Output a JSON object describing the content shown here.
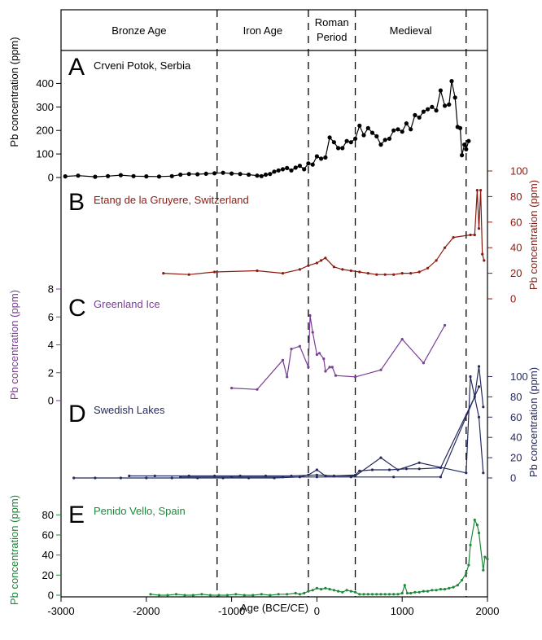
{
  "chart_data": {
    "type": "line",
    "xlabel": "Age (BCE/CE)",
    "xlim": [
      -3000,
      2000
    ],
    "x_ticks": [
      -3000,
      -2000,
      -1000,
      0,
      1000,
      2000
    ],
    "x_tick_labels": [
      "-3000",
      "-2000",
      "-1000",
      "0",
      "1000",
      "2000"
    ],
    "dashed_boundaries": [
      -1170,
      -100,
      450,
      1750
    ],
    "periods": [
      {
        "label_lines": [
          "Bronze Age"
        ],
        "center": -2085
      },
      {
        "label_lines": [
          "Iron Age"
        ],
        "center": -635
      },
      {
        "label_lines": [
          "Roman",
          "Period"
        ],
        "center": 175
      },
      {
        "label_lines": [
          "Medieval"
        ],
        "center": 1100
      }
    ],
    "panels": [
      {
        "letter": "A",
        "title": "Crveni Potok, Serbia",
        "color": "#000000",
        "ylabel": "Pb concentration (ppm)",
        "axis_side": "left",
        "ylim": [
          0,
          450
        ],
        "y_ticks": [
          0,
          100,
          200,
          300,
          400
        ],
        "series": [
          {
            "x": [
              -2950,
              -2800,
              -2600,
              -2450,
              -2300,
              -2150,
              -2000,
              -1850,
              -1700,
              -1600,
              -1500,
              -1400,
              -1300,
              -1200,
              -1100,
              -1000,
              -900,
              -800,
              -700,
              -650,
              -600,
              -550,
              -500,
              -450,
              -400,
              -350,
              -300,
              -250,
              -200,
              -150,
              -100,
              -50,
              0,
              50,
              100,
              150,
              200,
              250,
              300,
              350,
              400,
              450,
              500,
              550,
              600,
              650,
              700,
              750,
              800,
              850,
              900,
              950,
              1000,
              1050,
              1100,
              1150,
              1200,
              1250,
              1300,
              1350,
              1400,
              1450,
              1500,
              1550,
              1580,
              1620,
              1650,
              1680,
              1700,
              1730,
              1750,
              1780
            ],
            "y": [
              5,
              8,
              3,
              6,
              10,
              6,
              5,
              4,
              6,
              12,
              15,
              14,
              16,
              18,
              20,
              17,
              15,
              12,
              8,
              6,
              12,
              15,
              25,
              30,
              35,
              40,
              30,
              42,
              50,
              35,
              60,
              55,
              90,
              80,
              85,
              170,
              150,
              125,
              125,
              155,
              150,
              165,
              220,
              180,
              210,
              190,
              175,
              140,
              160,
              165,
              200,
              205,
              195,
              230,
              205,
              265,
              255,
              280,
              290,
              300,
              285,
              370,
              305,
              310,
              410,
              340,
              215,
              210,
              95,
              140,
              120,
              155
            ]
          }
        ]
      },
      {
        "letter": "B",
        "title": "Etang de la Gruyere, Switzerland",
        "color": "#8b1a10",
        "ylabel": "Pb concentration (ppm)",
        "axis_side": "right",
        "ylim": [
          0,
          100
        ],
        "y_ticks": [
          0,
          20,
          40,
          60,
          80,
          100
        ],
        "series": [
          {
            "x": [
              -1800,
              -1500,
              -1200,
              -700,
              -400,
              -200,
              -100,
              0,
              50,
              100,
              200,
              300,
              400,
              500,
              600,
              700,
              800,
              900,
              1000,
              1100,
              1200,
              1300,
              1400,
              1500,
              1600,
              1800,
              1850,
              1880,
              1900,
              1920,
              1940,
              1960
            ],
            "y": [
              20,
              19,
              21,
              22,
              20,
              23,
              26,
              28,
              30,
              32,
              25,
              23,
              22,
              21,
              20,
              19,
              19,
              19,
              20,
              20,
              21,
              24,
              30,
              40,
              48,
              50,
              50,
              85,
              55,
              85,
              35,
              30
            ]
          }
        ]
      },
      {
        "letter": "C",
        "title": "Greenland Ice",
        "color": "#7a3f96",
        "ylabel": "Pb concentration (ppm)",
        "axis_side": "left",
        "ylim": [
          0,
          8
        ],
        "y_ticks": [
          0,
          2,
          4,
          6,
          8
        ],
        "series": [
          {
            "x": [
              -1000,
              -700,
              -400,
              -350,
              -300,
              -200,
              -100,
              -80,
              -50,
              0,
              30,
              80,
              100,
              150,
              180,
              220,
              450,
              750,
              1000,
              1250,
              1500
            ],
            "y": [
              0.9,
              0.8,
              2.9,
              1.7,
              3.7,
              3.9,
              2.4,
              6.1,
              4.9,
              3.3,
              3.4,
              3.0,
              2.1,
              2.4,
              2.4,
              1.8,
              1.7,
              2.2,
              4.4,
              2.7,
              5.4
            ]
          }
        ]
      },
      {
        "letter": "D",
        "title": "Swedish Lakes",
        "color": "#252a5e",
        "ylabel": "Pb concentration (ppm)",
        "axis_side": "right",
        "ylim": [
          0,
          110
        ],
        "y_ticks": [
          0,
          20,
          40,
          60,
          80,
          100
        ],
        "series": [
          {
            "x": [
              -2850,
              -2600,
              -2300,
              -2000,
              -1700,
              -1400,
              -1100,
              -800,
              -500,
              -200,
              -100,
              0,
              100,
              200,
              450,
              750,
              950,
              1200,
              1750,
              1800,
              1900,
              1950
            ],
            "y": [
              0,
              0,
              0,
              0,
              0,
              0,
              0,
              0,
              0,
              1,
              3,
              8,
              2,
              2,
              2,
              20,
              8,
              15,
              5,
              100,
              60,
              5
            ]
          },
          {
            "x": [
              -2200,
              -1900,
              -1500,
              -1200,
              -900,
              -600,
              -300,
              0,
              200,
              450,
              500,
              650,
              850,
              1050,
              1200,
              1450,
              1850,
              1900,
              1950
            ],
            "y": [
              2,
              2,
              2,
              2,
              2,
              2,
              2,
              3,
              2,
              3,
              7,
              8,
              8,
              9,
              9,
              10,
              80,
              110,
              70
            ]
          },
          {
            "x": [
              -1600,
              -1000,
              -400,
              0,
              400,
              900,
              1450,
              1900
            ],
            "y": [
              1,
              1,
              1,
              1,
              1,
              1,
              1,
              90
            ]
          }
        ]
      },
      {
        "letter": "E",
        "title": "Penido Vello, Spain",
        "color": "#1a8a3a",
        "ylabel": "Pb concentration (ppm)",
        "axis_side": "left",
        "ylim": [
          0,
          90
        ],
        "y_ticks": [
          0,
          20,
          40,
          60,
          80
        ],
        "series": [
          {
            "x": [
              -1950,
              -1850,
              -1750,
              -1650,
              -1550,
              -1450,
              -1350,
              -1250,
              -1150,
              -1050,
              -950,
              -850,
              -750,
              -650,
              -550,
              -450,
              -350,
              -250,
              -200,
              -150,
              -100,
              -50,
              0,
              50,
              100,
              150,
              200,
              250,
              300,
              350,
              400,
              450,
              500,
              550,
              600,
              650,
              700,
              750,
              800,
              850,
              900,
              950,
              1000,
              1030,
              1060,
              1100,
              1150,
              1200,
              1250,
              1300,
              1350,
              1400,
              1450,
              1500,
              1550,
              1600,
              1650,
              1700,
              1750,
              1780,
              1800,
              1850,
              1880,
              1900,
              1950,
              1970,
              2000
            ],
            "y": [
              1,
              0,
              0,
              1,
              0,
              0,
              1,
              0,
              0,
              0,
              1,
              0,
              0,
              1,
              0,
              1,
              1,
              2,
              1,
              2,
              4,
              5,
              7,
              6,
              7,
              6,
              5,
              4,
              3,
              5,
              4,
              3,
              1,
              1,
              1,
              1,
              1,
              1,
              1,
              1,
              1,
              1,
              2,
              10,
              2,
              2,
              3,
              3,
              4,
              4,
              5,
              5,
              6,
              6,
              7,
              8,
              10,
              15,
              22,
              30,
              50,
              75,
              70,
              62,
              25,
              38,
              36
            ]
          }
        ]
      }
    ]
  }
}
